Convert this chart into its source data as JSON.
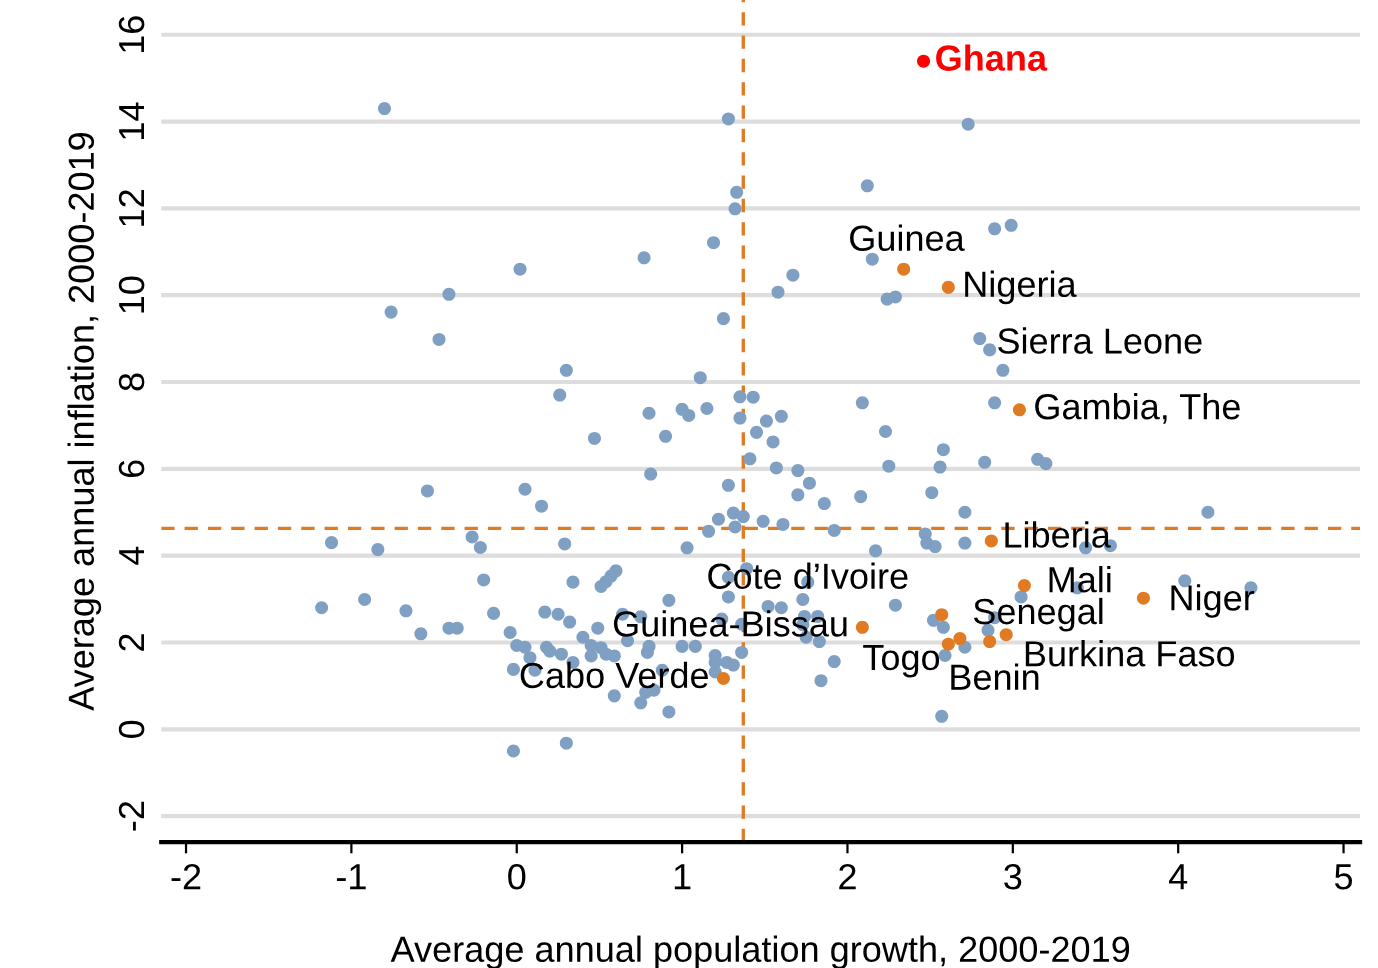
{
  "chart_data": {
    "type": "scatter",
    "xlabel": "Average annual population growth, 2000-2019",
    "ylabel": "Average annual inflation, 2000-2019",
    "xlim": [
      -2.15,
      5.1
    ],
    "ylim": [
      -2.6,
      16.8
    ],
    "xticks": [
      -2,
      -1,
      0,
      1,
      2,
      3,
      4,
      5
    ],
    "yticks": [
      -2,
      0,
      2,
      4,
      6,
      8,
      10,
      12,
      14,
      16
    ],
    "grid": "y",
    "marker": "circle",
    "ref_lines": [
      {
        "axis": "x",
        "value": 1.37,
        "color": "#e07b24",
        "line_style": "dashed"
      },
      {
        "axis": "y",
        "value": 4.63,
        "color": "#e07b24",
        "line_style": "dashed"
      }
    ],
    "series": [
      {
        "color": "#7f9fc3",
        "x": [
          -0.8,
          1.28,
          1.33,
          1.32,
          1.19,
          0.77,
          0.02,
          -0.41,
          -0.76,
          -0.47,
          1.25,
          0.3,
          0.26,
          1.11,
          1.35,
          1.43,
          0.8,
          1.0,
          1.04,
          1.15,
          1.35,
          1.45,
          0.47,
          0.9,
          1.41,
          0.81,
          1.28,
          2.73,
          2.12,
          2.89,
          2.99,
          2.15,
          1.67,
          1.58,
          2.24,
          2.29,
          2.8,
          2.86,
          2.94,
          2.89,
          2.09,
          1.6,
          1.51,
          1.55,
          2.23,
          2.58,
          2.56,
          2.25,
          2.83,
          3.15,
          3.2,
          1.57,
          1.7,
          1.77,
          -0.54,
          0.05,
          0.15,
          1.31,
          1.37,
          1.22,
          1.16,
          1.32,
          1.03,
          0.29,
          -0.27,
          -0.22,
          -0.84,
          -1.12,
          -1.18,
          -0.92,
          -0.67,
          -0.58,
          -0.41,
          -0.36,
          -0.2,
          -0.14,
          -0.04,
          0.0,
          0.05,
          0.08,
          -0.02,
          0.11,
          0.18,
          0.2,
          0.27,
          0.34,
          0.17,
          0.25,
          0.32,
          0.34,
          0.4,
          0.45,
          0.45,
          0.49,
          0.51,
          0.54,
          0.57,
          0.6,
          0.51,
          0.54,
          0.59,
          0.59,
          0.64,
          0.67,
          0.75,
          0.79,
          0.8,
          0.75,
          0.78,
          0.83,
          0.88,
          0.92,
          0.92,
          1.0,
          1.08,
          1.24,
          1.28,
          1.28,
          1.36,
          1.2,
          1.2,
          1.27,
          1.31,
          1.36,
          1.2,
          1.39,
          -0.02,
          0.3,
          1.7,
          1.86,
          2.08,
          2.51,
          2.71,
          1.49,
          1.61,
          1.92,
          2.47,
          2.48,
          2.53,
          2.71,
          2.17,
          3.44,
          3.59,
          4.18,
          1.76,
          1.73,
          1.52,
          1.6,
          1.74,
          1.82,
          1.73,
          1.75,
          1.83,
          1.92,
          1.84,
          2.29,
          2.52,
          2.58,
          2.59,
          2.71,
          2.85,
          2.89,
          3.05,
          3.39,
          4.04,
          4.44,
          2.57
        ],
        "values": [
          14.3,
          14.06,
          12.37,
          11.99,
          11.21,
          10.86,
          10.6,
          10.02,
          9.61,
          8.98,
          9.46,
          8.27,
          7.7,
          8.1,
          7.66,
          7.65,
          7.28,
          7.37,
          7.23,
          7.39,
          7.17,
          6.84,
          6.7,
          6.75,
          6.23,
          5.88,
          5.62,
          13.94,
          12.52,
          11.53,
          11.61,
          10.83,
          10.46,
          10.07,
          9.91,
          9.96,
          9.0,
          8.74,
          8.27,
          7.52,
          7.52,
          7.21,
          7.1,
          6.62,
          6.86,
          6.44,
          6.04,
          6.06,
          6.15,
          6.22,
          6.12,
          6.02,
          5.96,
          5.67,
          5.49,
          5.53,
          5.14,
          4.98,
          4.9,
          4.84,
          4.56,
          4.66,
          4.18,
          4.27,
          4.43,
          4.19,
          4.14,
          4.3,
          2.8,
          2.99,
          2.73,
          2.2,
          2.33,
          2.33,
          3.44,
          2.67,
          2.23,
          1.93,
          1.89,
          1.65,
          1.38,
          1.36,
          1.89,
          1.8,
          1.73,
          1.54,
          2.7,
          2.65,
          2.47,
          3.39,
          2.12,
          1.93,
          1.69,
          2.33,
          3.29,
          3.4,
          3.53,
          3.65,
          1.88,
          1.73,
          1.69,
          0.77,
          2.65,
          2.04,
          2.59,
          1.77,
          1.91,
          0.61,
          0.85,
          0.9,
          1.36,
          2.97,
          0.4,
          1.91,
          1.91,
          2.54,
          3.5,
          3.05,
          2.42,
          1.7,
          1.54,
          1.54,
          1.48,
          1.77,
          1.32,
          3.7,
          -0.5,
          -0.32,
          5.4,
          5.2,
          5.36,
          5.45,
          5.0,
          4.79,
          4.72,
          4.58,
          4.5,
          4.29,
          4.21,
          4.29,
          4.11,
          4.18,
          4.23,
          5.0,
          3.39,
          2.99,
          2.83,
          2.8,
          2.6,
          2.6,
          2.41,
          2.12,
          2.02,
          1.56,
          1.12,
          2.86,
          2.51,
          2.35,
          1.7,
          1.89,
          2.28,
          2.57,
          3.05,
          3.26,
          3.42,
          3.26,
          0.3
        ]
      },
      {
        "color": "#e07b24",
        "x": [
          2.34,
          2.61,
          3.04,
          2.87,
          3.07,
          3.79,
          2.57,
          2.09,
          2.61,
          2.68,
          2.86,
          2.96,
          1.25
        ],
        "values": [
          10.6,
          10.18,
          7.36,
          4.34,
          3.31,
          3.02,
          2.64,
          2.35,
          1.96,
          2.09,
          2.02,
          2.18,
          1.17
        ]
      },
      {
        "color": "#ff0000",
        "x": [
          2.46
        ],
        "values": [
          15.39
        ]
      }
    ],
    "annotations": [
      {
        "text": "Ghana",
        "x": 2.46,
        "y": 15.39
      },
      {
        "text": "Guinea",
        "x": 2.34,
        "y": 10.6
      },
      {
        "text": "Nigeria",
        "x": 2.61,
        "y": 10.18
      },
      {
        "text": "Sierra Leone",
        "x": 2.8,
        "y": 9.0
      },
      {
        "text": "Gambia, The",
        "x": 3.04,
        "y": 7.36
      },
      {
        "text": "Liberia",
        "x": 2.87,
        "y": 4.34
      },
      {
        "text": "Mali",
        "x": 3.07,
        "y": 3.31
      },
      {
        "text": "Niger",
        "x": 3.79,
        "y": 3.02
      },
      {
        "text": "Cote d’Ivoire",
        "x": 1.76,
        "y": 3.39
      },
      {
        "text": "Senegal",
        "x": 2.57,
        "y": 2.64
      },
      {
        "text": "Guinea-Bissau",
        "x": 1.36,
        "y": 2.42
      },
      {
        "text": "Togo",
        "x": 2.09,
        "y": 2.35
      },
      {
        "text": "Burkina Faso",
        "x": 2.96,
        "y": 2.18
      },
      {
        "text": "Benin",
        "x": 2.61,
        "y": 1.96
      },
      {
        "text": "Cabo Verde",
        "x": 1.25,
        "y": 1.17
      }
    ]
  }
}
